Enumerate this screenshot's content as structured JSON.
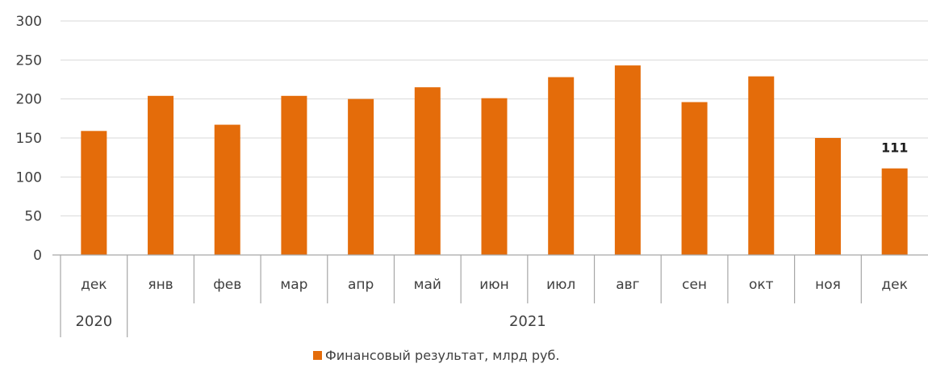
{
  "chart_data": {
    "type": "bar",
    "title": "",
    "xlabel": "",
    "ylabel": "",
    "ylim": [
      0,
      300
    ],
    "yticks": [
      0,
      50,
      100,
      150,
      200,
      250,
      300
    ],
    "grid": true,
    "legend_position": "bottom",
    "categories": [
      "дек",
      "янв",
      "фев",
      "мар",
      "апр",
      "май",
      "июн",
      "июл",
      "авг",
      "сен",
      "окт",
      "ноя",
      "дек"
    ],
    "year_groups": [
      {
        "label": "2020",
        "start": 0,
        "end": 0
      },
      {
        "label": "2021",
        "start": 1,
        "end": 12
      }
    ],
    "series": [
      {
        "name": "Финансовый результат, млрд руб.",
        "color": "#e46c0a",
        "values": [
          159,
          204,
          167,
          204,
          200,
          215,
          201,
          228,
          243,
          196,
          229,
          150,
          111
        ]
      }
    ],
    "data_labels": [
      {
        "index": 12,
        "text": "111"
      }
    ]
  }
}
